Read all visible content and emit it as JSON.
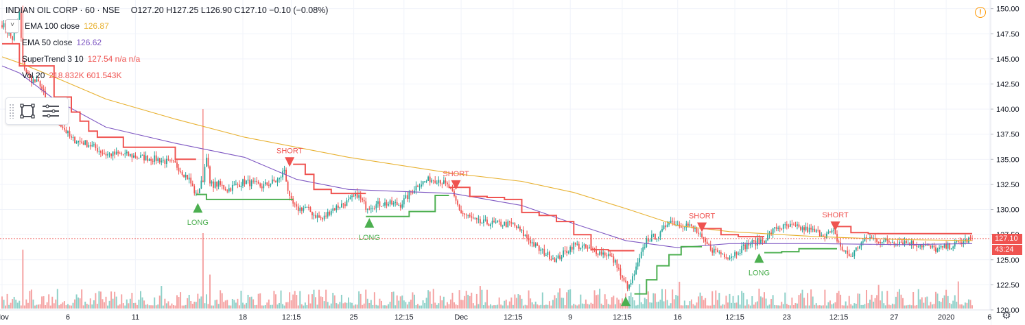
{
  "header": {
    "symbol": "INDIAN OIL CORP · 60 · NSE",
    "ohlc": "O127.20  H127.25  L126.90  C127.10  −0.10 (−0.08%)",
    "collapse_label": "˅"
  },
  "legend": [
    {
      "name": "EMA 100 close",
      "value": "126.87",
      "color": "#e8b130"
    },
    {
      "name": "EMA 50 close",
      "value": "126.62",
      "color": "#7e57c2"
    },
    {
      "name": "SuperTrend 3 10",
      "value": "127.54  n/a  n/a",
      "color": "#ef5350"
    },
    {
      "name": "Vol 20",
      "value": "218.832K  601.543K",
      "color": "#ef5350"
    }
  ],
  "toolbox": {
    "icons": [
      "rectangle-icon",
      "list-settings-icon"
    ]
  },
  "price_axis": {
    "labels": [
      "150.00",
      "147.50",
      "145.00",
      "142.50",
      "140.00",
      "137.50",
      "135.00",
      "132.50",
      "130.00",
      "127.50",
      "125.00",
      "122.50",
      "120.00"
    ],
    "last_price": "127.10",
    "countdown": "43:24"
  },
  "time_axis": {
    "labels": [
      "Nov",
      "6",
      "11",
      "18",
      "12:15",
      "25",
      "12:15",
      "Dec",
      "12:15",
      "9",
      "12:15",
      "16",
      "12:15",
      "23",
      "12:15",
      "27",
      "2020",
      "6"
    ]
  },
  "colors": {
    "up": "#26a69a",
    "down": "#ef5350",
    "ema100": "#e8b130",
    "ema50": "#7e57c2",
    "st_up": "#4caf50",
    "st_down": "#ef5350",
    "vol_up": "#8fd1c9",
    "vol_down": "#f5a3a3"
  },
  "chart_data": {
    "type": "candlestick",
    "ylim": [
      120,
      151
    ],
    "grid": true,
    "series": [
      {
        "name": "EMA 100 close",
        "x": [
          0,
          10,
          30,
          60,
          100,
          140,
          200,
          260,
          300,
          330,
          360,
          390,
          420,
          470,
          520,
          560
        ],
        "y": [
          145.2,
          144.6,
          143.2,
          141.0,
          139.0,
          137.2,
          135.2,
          133.6,
          132.8,
          131.7,
          130.1,
          128.4,
          127.8,
          127.3,
          127.0,
          126.9
        ]
      },
      {
        "name": "EMA 50 close",
        "x": [
          0,
          10,
          30,
          60,
          100,
          140,
          170,
          200,
          260,
          300,
          330,
          360,
          390,
          420,
          470,
          520,
          560
        ],
        "y": [
          144.3,
          143.6,
          141.0,
          138.2,
          136.6,
          135.2,
          133.0,
          132.0,
          131.6,
          130.4,
          128.6,
          126.9,
          126.2,
          126.6,
          126.6,
          126.5,
          126.6
        ]
      },
      {
        "name": "SuperTrend",
        "segments": [
          {
            "trend": "down",
            "x": [
              0,
              8,
              10,
              15,
              22,
              30,
              40,
              45,
              50,
              55,
              62,
              70,
              76,
              85,
              95,
              100,
              112
            ],
            "y": [
              146.5,
              146.5,
              144.3,
              144.3,
              144.3,
              141.2,
              139.7,
              138.8,
              137.8,
              137.2,
              137.2,
              136.2,
              136.2,
              136.2,
              136.2,
              135.0,
              135.0
            ]
          },
          {
            "trend": "up",
            "x": [
              112,
              118,
              130,
              145,
              160,
              165,
              168
            ],
            "y": [
              131.5,
              131.0,
              131.0,
              131.0,
              131.0,
              131.0,
              131.0
            ]
          },
          {
            "trend": "down",
            "x": [
              168,
              175,
              180,
              190,
              200,
              205,
              210
            ],
            "y": [
              134.5,
              133.5,
              132.0,
              131.6,
              131.6,
              131.6,
              131.6
            ]
          },
          {
            "trend": "up",
            "x": [
              210,
              220,
              232,
              235,
              250,
              258
            ],
            "y": [
              129.3,
              129.3,
              129.3,
              129.8,
              131.4,
              131.4
            ]
          },
          {
            "trend": "down",
            "x": [
              258,
              270,
              280,
              290,
              300,
              310,
              320,
              330,
              340,
              350,
              365
            ],
            "y": [
              132.2,
              131.3,
              131.2,
              131.0,
              129.7,
              129.4,
              128.8,
              127.5,
              126.0,
              125.9,
              125.9
            ]
          },
          {
            "trend": "up",
            "x": [
              365,
              372,
              378,
              385,
              392,
              404
            ],
            "y": [
              121.6,
              123.0,
              124.4,
              125.5,
              126.3,
              126.3
            ]
          },
          {
            "trend": "down",
            "x": [
              404,
              415,
              425,
              435,
              440
            ],
            "y": [
              128.1,
              127.5,
              127.3,
              127.3,
              127.3
            ]
          },
          {
            "trend": "up",
            "x": [
              440,
              450,
              460,
              470,
              482
            ],
            "y": [
              125.7,
              125.8,
              126.1,
              126.1,
              126.1
            ]
          },
          {
            "trend": "down",
            "x": [
              482,
              490,
              500,
              520,
              540,
              560
            ],
            "y": [
              128.3,
              127.7,
              127.6,
              127.6,
              127.6,
              127.6
            ]
          }
        ]
      },
      {
        "name": "Signals",
        "points": [
          {
            "label": "LONG",
            "x": 113,
            "y": 130.1
          },
          {
            "label": "SHORT",
            "x": 166,
            "y": 134.8
          },
          {
            "label": "LONG",
            "x": 212,
            "y": 128.6
          },
          {
            "label": "SHORT",
            "x": 262,
            "y": 132.5
          },
          {
            "label": "LONG",
            "x": 360,
            "y": 120.8
          },
          {
            "label": "SHORT",
            "x": 404,
            "y": 128.3
          },
          {
            "label": "LONG",
            "x": 437,
            "y": 125.1
          },
          {
            "label": "SHORT",
            "x": 481,
            "y": 128.4
          }
        ]
      }
    ],
    "candles": {
      "count": 561,
      "keyframes": [
        [
          0,
          148.5
        ],
        [
          6,
          147.0
        ],
        [
          10,
          149.5
        ],
        [
          12,
          144.5
        ],
        [
          16,
          143.0
        ],
        [
          22,
          142.5
        ],
        [
          25,
          141.0
        ],
        [
          30,
          139.5
        ],
        [
          40,
          137.0
        ],
        [
          50,
          136.5
        ],
        [
          60,
          135.5
        ],
        [
          70,
          135.5
        ],
        [
          80,
          135.2
        ],
        [
          90,
          135.0
        ],
        [
          100,
          134.5
        ],
        [
          108,
          133.0
        ],
        [
          112,
          131.4
        ],
        [
          116,
          133.0
        ],
        [
          118,
          135.5
        ],
        [
          120,
          132.5
        ],
        [
          125,
          132.5
        ],
        [
          130,
          132.0
        ],
        [
          140,
          132.8
        ],
        [
          150,
          132.3
        ],
        [
          160,
          133.0
        ],
        [
          163,
          134.0
        ],
        [
          166,
          131.0
        ],
        [
          170,
          130.0
        ],
        [
          175,
          130.2
        ],
        [
          180,
          129.5
        ],
        [
          185,
          129.0
        ],
        [
          190,
          130.0
        ],
        [
          200,
          130.8
        ],
        [
          205,
          131.5
        ],
        [
          210,
          130.3
        ],
        [
          220,
          130.6
        ],
        [
          230,
          130.5
        ],
        [
          240,
          132.5
        ],
        [
          247,
          133.0
        ],
        [
          252,
          133.0
        ],
        [
          258,
          132.2
        ],
        [
          265,
          129.7
        ],
        [
          275,
          128.7
        ],
        [
          285,
          128.6
        ],
        [
          295,
          128.5
        ],
        [
          300,
          127.7
        ],
        [
          310,
          126.0
        ],
        [
          320,
          125.0
        ],
        [
          330,
          126.5
        ],
        [
          340,
          126.0
        ],
        [
          350,
          125.5
        ],
        [
          355,
          124.5
        ],
        [
          358,
          123.0
        ],
        [
          362,
          122.2
        ],
        [
          368,
          125.0
        ],
        [
          372,
          127.0
        ],
        [
          380,
          127.5
        ],
        [
          385,
          129.0
        ],
        [
          390,
          128.5
        ],
        [
          395,
          128.5
        ],
        [
          400,
          128.0
        ],
        [
          405,
          126.8
        ],
        [
          410,
          126.0
        ],
        [
          420,
          125.3
        ],
        [
          430,
          126.5
        ],
        [
          440,
          127.0
        ],
        [
          447,
          128.2
        ],
        [
          455,
          128.3
        ],
        [
          465,
          128.0
        ],
        [
          475,
          127.5
        ],
        [
          480,
          127.7
        ],
        [
          485,
          126.0
        ],
        [
          490,
          125.3
        ],
        [
          495,
          126.5
        ],
        [
          500,
          127.2
        ],
        [
          510,
          126.8
        ],
        [
          520,
          126.8
        ],
        [
          530,
          126.5
        ],
        [
          540,
          126.0
        ],
        [
          550,
          126.5
        ],
        [
          560,
          127.1
        ]
      ]
    },
    "volume": {
      "ylim_max": 1250000,
      "avg_visible": 218832
    }
  }
}
